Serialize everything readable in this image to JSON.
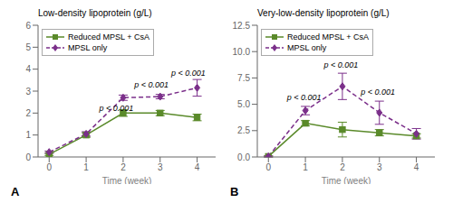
{
  "chart_data": [
    {
      "type": "line",
      "title": "Low-density lipoprotein (g/L)",
      "panel_label": "A",
      "x_label": "Time (week)",
      "x": [
        0,
        1,
        2,
        3,
        4
      ],
      "xlim": [
        -0.3,
        4.5
      ],
      "xticks": [
        0,
        1,
        2,
        3,
        4
      ],
      "ylim": [
        0,
        6
      ],
      "yticks": [
        0,
        1,
        2,
        3,
        4,
        5,
        6
      ],
      "grid": false,
      "legend": "upper left",
      "series": [
        {
          "name": "Reduced MPSL + CsA",
          "color": "#5a8a2a",
          "marker": "square",
          "line_style": "solid",
          "values": [
            0.12,
            1.0,
            2.0,
            2.0,
            1.8
          ],
          "errors": [
            0.05,
            0.1,
            0.15,
            0.12,
            0.15
          ]
        },
        {
          "name": "MPSL only",
          "color": "#7b2f8a",
          "marker": "diamond",
          "line_style": "dashed",
          "values": [
            0.22,
            1.05,
            2.7,
            2.75,
            3.15
          ],
          "errors": [
            0.05,
            0.1,
            0.12,
            0.1,
            0.38
          ]
        }
      ],
      "annotations": [
        {
          "x": 1.35,
          "y": 2.0,
          "text": "p < 0.001"
        },
        {
          "x": 2.3,
          "y": 3.1,
          "text": "p < 0.001"
        },
        {
          "x": 3.3,
          "y": 3.6,
          "text": "p < 0.001"
        }
      ]
    },
    {
      "type": "line",
      "title": "Very-low-density lipoprotein (g/L)",
      "panel_label": "B",
      "x_label": "Time (week)",
      "x": [
        0,
        1,
        2,
        3,
        4
      ],
      "xlim": [
        -0.3,
        4.5
      ],
      "xticks": [
        0,
        1,
        2,
        3,
        4
      ],
      "ylim": [
        0,
        12.5
      ],
      "yticks": [
        {
          "value": 0,
          "label": "0.0"
        },
        2.5,
        {
          "value": 5,
          "label": "5.0"
        },
        7.5,
        {
          "value": 10,
          "label": "10.0"
        },
        12.5
      ],
      "grid": false,
      "legend": "upper left",
      "series": [
        {
          "name": "Reduced MPSL + CsA",
          "color": "#5a8a2a",
          "marker": "square",
          "line_style": "solid",
          "values": [
            0.05,
            3.2,
            2.6,
            2.3,
            2.0
          ],
          "errors": [
            0.05,
            0.25,
            0.7,
            0.3,
            0.2
          ]
        },
        {
          "name": "MPSL only",
          "color": "#7b2f8a",
          "marker": "diamond",
          "line_style": "dashed",
          "values": [
            0.05,
            4.4,
            6.7,
            4.2,
            2.2
          ],
          "errors": [
            0.05,
            0.4,
            1.25,
            1.1,
            0.5
          ]
        }
      ],
      "annotations": [
        {
          "x": 0.5,
          "y": 5.2,
          "text": "p < 0.001"
        },
        {
          "x": 1.5,
          "y": 8.3,
          "text": "p < 0.001"
        },
        {
          "x": 2.5,
          "y": 5.7,
          "text": "p < 0.001"
        }
      ]
    }
  ]
}
